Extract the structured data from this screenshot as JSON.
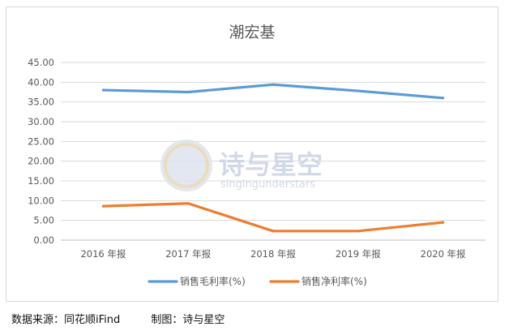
{
  "chart_data": {
    "type": "line",
    "title": "潮宏基",
    "categories": [
      "2016 年报",
      "2017 年报",
      "2018 年报",
      "2019 年报",
      "2020 年报"
    ],
    "series": [
      {
        "name": "销售毛利率(%)",
        "color": "#5b9bd5",
        "values": [
          38.0,
          37.5,
          39.4,
          37.8,
          36.0
        ]
      },
      {
        "name": "销售净利率(%)",
        "color": "#ed7d31",
        "values": [
          8.6,
          9.3,
          2.3,
          2.3,
          4.5
        ]
      }
    ],
    "y_ticks": [
      "0.00",
      "5.00",
      "10.00",
      "15.00",
      "20.00",
      "25.00",
      "30.00",
      "35.00",
      "40.00",
      "45.00"
    ],
    "ylim": [
      0,
      45
    ],
    "grid": true,
    "legend_position": "bottom"
  },
  "watermark": {
    "title": "诗与星空",
    "subtitle": "singingunderstars"
  },
  "footer": {
    "source": "数据来源：同花顺iFind",
    "maker": "制图：诗与星空"
  }
}
